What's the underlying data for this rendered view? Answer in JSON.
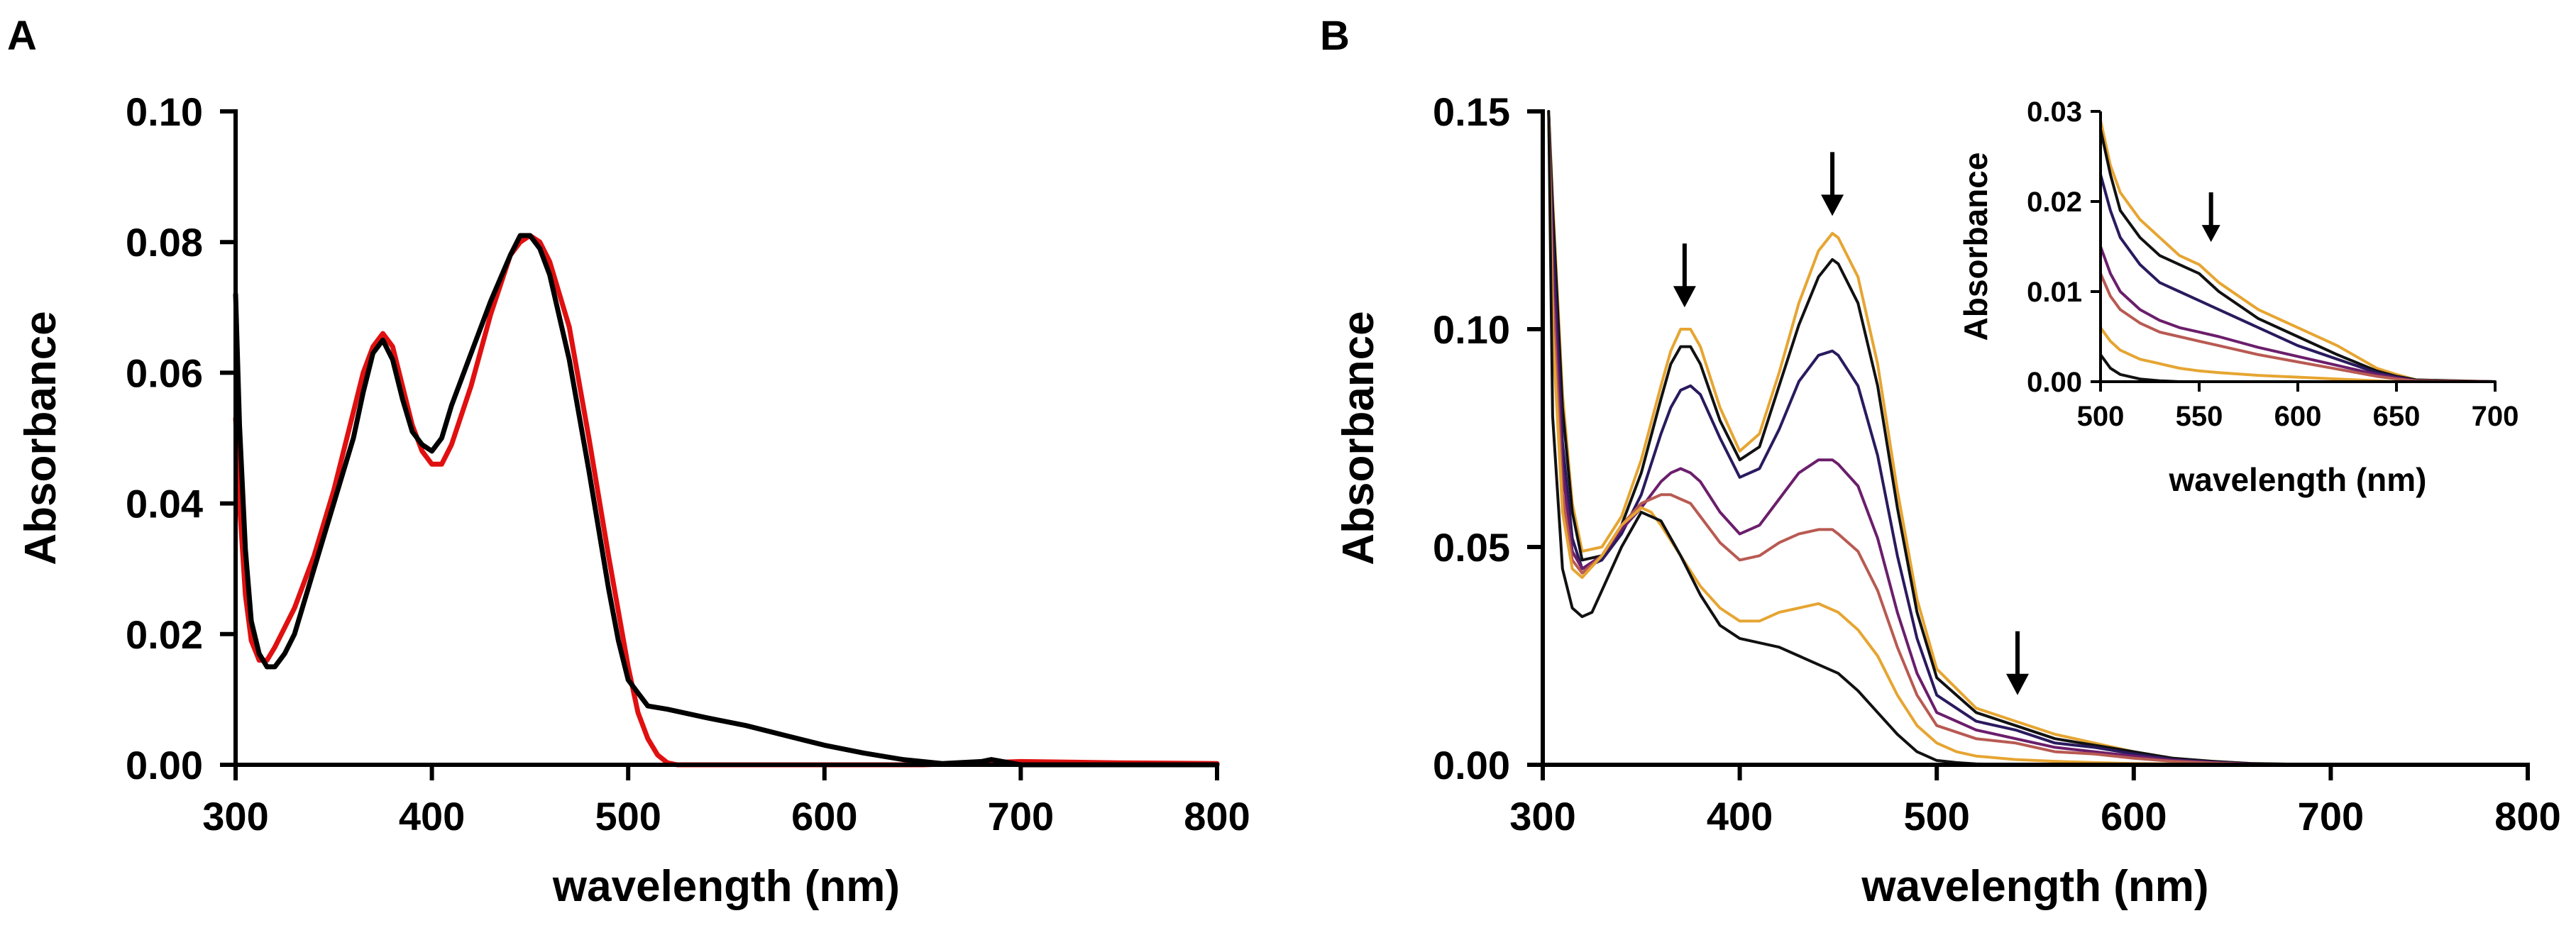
{
  "chart_data": [
    {
      "panel": "A",
      "type": "line",
      "title": "",
      "xlabel": "wavelength (nm)",
      "ylabel": "Absorbance",
      "xlim": [
        300,
        800
      ],
      "ylim": [
        0,
        0.1
      ],
      "xticks": [
        "300",
        "400",
        "500",
        "600",
        "700",
        "800"
      ],
      "yticks": [
        "0.00",
        "0.02",
        "0.04",
        "0.06",
        "0.08",
        "0.10"
      ],
      "legend": "none",
      "grid": false,
      "series": [
        {
          "color": "#e01010",
          "x": [
            300,
            302,
            305,
            308,
            312,
            316,
            320,
            330,
            340,
            350,
            360,
            365,
            370,
            375,
            380,
            385,
            390,
            395,
            400,
            405,
            410,
            420,
            430,
            440,
            445,
            450,
            455,
            460,
            470,
            480,
            490,
            500,
            505,
            510,
            515,
            520,
            525,
            550,
            600,
            650,
            700,
            750,
            800
          ],
          "y": [
            0.053,
            0.04,
            0.026,
            0.019,
            0.016,
            0.016,
            0.018,
            0.024,
            0.032,
            0.042,
            0.054,
            0.06,
            0.064,
            0.066,
            0.064,
            0.058,
            0.052,
            0.048,
            0.046,
            0.046,
            0.049,
            0.058,
            0.069,
            0.078,
            0.08,
            0.081,
            0.08,
            0.077,
            0.067,
            0.05,
            0.032,
            0.015,
            0.008,
            0.004,
            0.0015,
            0.0003,
            0.0,
            0.0,
            0.0,
            0.0,
            0.0005,
            0.0003,
            0.0002
          ]
        },
        {
          "color": "#000000",
          "x": [
            300,
            302,
            305,
            308,
            312,
            316,
            320,
            325,
            330,
            340,
            350,
            360,
            365,
            370,
            375,
            380,
            385,
            390,
            395,
            400,
            405,
            410,
            420,
            430,
            440,
            445,
            450,
            455,
            460,
            470,
            480,
            490,
            495,
            500,
            505,
            510,
            520,
            540,
            560,
            580,
            600,
            620,
            640,
            660,
            680,
            685,
            700,
            750,
            800
          ],
          "y": [
            0.072,
            0.052,
            0.033,
            0.022,
            0.017,
            0.015,
            0.015,
            0.017,
            0.02,
            0.03,
            0.04,
            0.05,
            0.057,
            0.063,
            0.065,
            0.062,
            0.056,
            0.051,
            0.049,
            0.048,
            0.05,
            0.055,
            0.063,
            0.071,
            0.078,
            0.081,
            0.081,
            0.079,
            0.075,
            0.062,
            0.045,
            0.027,
            0.019,
            0.013,
            0.011,
            0.009,
            0.0085,
            0.0072,
            0.006,
            0.0045,
            0.003,
            0.0018,
            0.0008,
            0.0002,
            0.0005,
            0.0008,
            0.0,
            0.0,
            0.0
          ]
        }
      ]
    },
    {
      "panel": "B",
      "type": "line",
      "title": "",
      "xlabel": "wavelength (nm)",
      "ylabel": "Absorbance",
      "xlim": [
        300,
        800
      ],
      "ylim": [
        0,
        0.15
      ],
      "xticks": [
        "300",
        "400",
        "500",
        "600",
        "700",
        "800"
      ],
      "yticks": [
        "0.00",
        "0.05",
        "0.10",
        "0.15"
      ],
      "legend": "none",
      "grid": false,
      "series": [
        {
          "color": "#e6a532",
          "x": [
            303,
            305,
            310,
            315,
            320,
            330,
            340,
            350,
            360,
            365,
            370,
            375,
            380,
            390,
            400,
            410,
            420,
            430,
            440,
            447,
            450,
            460,
            470,
            480,
            490,
            500,
            520,
            540,
            560,
            580,
            600,
            620,
            640,
            660,
            700,
            750,
            800
          ],
          "y": [
            0.15,
            0.13,
            0.085,
            0.06,
            0.049,
            0.05,
            0.057,
            0.07,
            0.087,
            0.095,
            0.1,
            0.1,
            0.096,
            0.082,
            0.072,
            0.076,
            0.09,
            0.106,
            0.118,
            0.122,
            0.121,
            0.112,
            0.092,
            0.063,
            0.038,
            0.022,
            0.013,
            0.01,
            0.007,
            0.005,
            0.003,
            0.0015,
            0.0008,
            0.0003,
            0.0,
            0.0,
            0.0
          ]
        },
        {
          "color": "#111111",
          "x": [
            303,
            305,
            310,
            315,
            320,
            330,
            340,
            350,
            360,
            365,
            370,
            375,
            380,
            390,
            400,
            410,
            420,
            430,
            440,
            447,
            450,
            460,
            470,
            480,
            490,
            500,
            520,
            540,
            560,
            580,
            600,
            620,
            640,
            660,
            700,
            750,
            800
          ],
          "y": [
            0.15,
            0.128,
            0.082,
            0.058,
            0.047,
            0.048,
            0.055,
            0.067,
            0.084,
            0.092,
            0.096,
            0.096,
            0.092,
            0.079,
            0.07,
            0.073,
            0.087,
            0.101,
            0.112,
            0.116,
            0.115,
            0.106,
            0.087,
            0.059,
            0.035,
            0.02,
            0.012,
            0.009,
            0.006,
            0.0045,
            0.003,
            0.0015,
            0.0008,
            0.0003,
            0.0,
            0.0,
            0.0
          ]
        },
        {
          "color": "#2a1a5e",
          "x": [
            303,
            305,
            310,
            315,
            320,
            330,
            340,
            350,
            360,
            365,
            370,
            375,
            380,
            390,
            400,
            410,
            420,
            430,
            440,
            447,
            450,
            460,
            470,
            480,
            490,
            500,
            520,
            540,
            560,
            580,
            600,
            620,
            640,
            660,
            700,
            750,
            800
          ],
          "y": [
            0.15,
            0.122,
            0.074,
            0.052,
            0.045,
            0.047,
            0.053,
            0.062,
            0.076,
            0.082,
            0.086,
            0.087,
            0.085,
            0.075,
            0.066,
            0.068,
            0.077,
            0.088,
            0.094,
            0.095,
            0.094,
            0.087,
            0.071,
            0.048,
            0.029,
            0.016,
            0.01,
            0.008,
            0.005,
            0.004,
            0.0025,
            0.0012,
            0.0006,
            0.0002,
            0.0,
            0.0,
            0.0
          ]
        },
        {
          "color": "#6b1e6b",
          "x": [
            303,
            305,
            310,
            315,
            320,
            330,
            340,
            350,
            360,
            365,
            370,
            375,
            380,
            390,
            400,
            410,
            420,
            430,
            440,
            447,
            450,
            460,
            470,
            480,
            490,
            500,
            520,
            540,
            560,
            580,
            600,
            620,
            640,
            660,
            700,
            750,
            800
          ],
          "y": [
            0.15,
            0.115,
            0.068,
            0.049,
            0.045,
            0.048,
            0.054,
            0.059,
            0.065,
            0.067,
            0.068,
            0.067,
            0.065,
            0.058,
            0.053,
            0.055,
            0.061,
            0.067,
            0.07,
            0.07,
            0.069,
            0.064,
            0.052,
            0.035,
            0.021,
            0.012,
            0.008,
            0.006,
            0.004,
            0.003,
            0.002,
            0.001,
            0.0005,
            0.0002,
            0.0,
            0.0,
            0.0
          ]
        },
        {
          "color": "#b85a52",
          "x": [
            303,
            305,
            310,
            315,
            320,
            330,
            340,
            350,
            360,
            365,
            370,
            375,
            380,
            390,
            400,
            410,
            420,
            430,
            440,
            447,
            450,
            460,
            470,
            480,
            490,
            500,
            520,
            540,
            560,
            580,
            600,
            620,
            640,
            660,
            700,
            750,
            800
          ],
          "y": [
            0.15,
            0.108,
            0.062,
            0.047,
            0.044,
            0.048,
            0.055,
            0.06,
            0.062,
            0.062,
            0.061,
            0.06,
            0.057,
            0.051,
            0.047,
            0.048,
            0.051,
            0.053,
            0.054,
            0.054,
            0.053,
            0.049,
            0.04,
            0.027,
            0.016,
            0.009,
            0.006,
            0.005,
            0.003,
            0.0025,
            0.0015,
            0.0008,
            0.0004,
            0.0001,
            0.0,
            0.0,
            0.0
          ]
        },
        {
          "color": "#e6a532",
          "x": [
            303,
            305,
            310,
            315,
            320,
            330,
            340,
            350,
            355,
            360,
            370,
            380,
            390,
            400,
            410,
            420,
            430,
            440,
            445,
            450,
            460,
            470,
            480,
            490,
            500,
            510,
            520,
            540,
            560,
            580,
            600,
            620,
            640,
            660,
            700,
            750,
            800
          ],
          "y": [
            0.15,
            0.1,
            0.058,
            0.045,
            0.043,
            0.048,
            0.055,
            0.059,
            0.058,
            0.055,
            0.048,
            0.041,
            0.036,
            0.033,
            0.033,
            0.035,
            0.036,
            0.037,
            0.036,
            0.035,
            0.031,
            0.025,
            0.016,
            0.009,
            0.005,
            0.003,
            0.002,
            0.0012,
            0.0008,
            0.0005,
            0.0003,
            0.0002,
            0.0001,
            0.0,
            0.0,
            0.0,
            0.0
          ]
        },
        {
          "color": "#111111",
          "x": [
            303,
            305,
            310,
            315,
            320,
            325,
            330,
            340,
            350,
            360,
            370,
            380,
            390,
            400,
            410,
            420,
            430,
            440,
            450,
            460,
            470,
            480,
            490,
            500,
            510,
            520,
            540,
            560,
            600,
            650,
            700,
            800
          ],
          "y": [
            0.15,
            0.08,
            0.045,
            0.036,
            0.034,
            0.035,
            0.04,
            0.05,
            0.058,
            0.056,
            0.048,
            0.039,
            0.032,
            0.029,
            0.028,
            0.027,
            0.025,
            0.023,
            0.021,
            0.017,
            0.012,
            0.007,
            0.003,
            0.001,
            0.0005,
            0.0002,
            0.0,
            0.0,
            0.0,
            0.0,
            0.0,
            0.0
          ]
        }
      ],
      "annotations": [
        {
          "type": "arrow-down",
          "x": 372,
          "y": 0.105
        },
        {
          "type": "arrow-down",
          "x": 447,
          "y": 0.126
        },
        {
          "type": "arrow-down",
          "x": 541,
          "y": 0.016
        }
      ]
    },
    {
      "panel": "B-inset",
      "type": "line",
      "title": "",
      "xlabel": "wavelength (nm)",
      "ylabel": "Absorbance",
      "xlim": [
        500,
        700
      ],
      "ylim": [
        0,
        0.03
      ],
      "xticks": [
        "500",
        "550",
        "600",
        "650",
        "700"
      ],
      "yticks": [
        "0.00",
        "0.01",
        "0.02",
        "0.03"
      ],
      "legend": "none",
      "grid": false,
      "series": [
        {
          "color": "#e6a532",
          "x": [
            500,
            505,
            510,
            520,
            530,
            540,
            550,
            560,
            580,
            600,
            620,
            640,
            650,
            660,
            700
          ],
          "y": [
            0.029,
            0.024,
            0.021,
            0.018,
            0.016,
            0.014,
            0.013,
            0.011,
            0.008,
            0.006,
            0.004,
            0.0015,
            0.0008,
            0.0002,
            0.0
          ]
        },
        {
          "color": "#111111",
          "x": [
            500,
            505,
            510,
            520,
            530,
            540,
            550,
            560,
            580,
            600,
            620,
            640,
            650,
            660,
            700
          ],
          "y": [
            0.028,
            0.023,
            0.019,
            0.016,
            0.014,
            0.013,
            0.012,
            0.01,
            0.007,
            0.005,
            0.003,
            0.0012,
            0.0006,
            0.0002,
            0.0
          ]
        },
        {
          "color": "#2a1a5e",
          "x": [
            500,
            505,
            510,
            520,
            530,
            540,
            550,
            560,
            580,
            600,
            620,
            640,
            650,
            660,
            700
          ],
          "y": [
            0.023,
            0.019,
            0.016,
            0.013,
            0.011,
            0.01,
            0.009,
            0.008,
            0.006,
            0.004,
            0.0025,
            0.001,
            0.0005,
            0.0001,
            0.0
          ]
        },
        {
          "color": "#6b1e6b",
          "x": [
            500,
            505,
            510,
            520,
            530,
            540,
            550,
            560,
            580,
            600,
            620,
            640,
            650,
            660,
            700
          ],
          "y": [
            0.015,
            0.012,
            0.01,
            0.008,
            0.0068,
            0.006,
            0.0055,
            0.005,
            0.0038,
            0.0028,
            0.0018,
            0.0008,
            0.0004,
            0.0001,
            0.0
          ]
        },
        {
          "color": "#b85a52",
          "x": [
            500,
            505,
            510,
            520,
            530,
            540,
            550,
            560,
            580,
            600,
            620,
            640,
            650,
            660,
            700
          ],
          "y": [
            0.012,
            0.0095,
            0.008,
            0.0065,
            0.0055,
            0.005,
            0.0045,
            0.004,
            0.003,
            0.0022,
            0.0014,
            0.0006,
            0.0003,
            0.0001,
            0.0
          ]
        },
        {
          "color": "#e6a532",
          "x": [
            500,
            505,
            510,
            520,
            530,
            540,
            550,
            560,
            580,
            600,
            620,
            640,
            650,
            660,
            700
          ],
          "y": [
            0.006,
            0.0045,
            0.0035,
            0.0025,
            0.002,
            0.0015,
            0.0012,
            0.001,
            0.0007,
            0.0005,
            0.0003,
            0.0001,
            0.0,
            0.0,
            0.0
          ]
        },
        {
          "color": "#111111",
          "x": [
            500,
            505,
            510,
            520,
            530,
            540,
            560,
            600,
            650,
            700
          ],
          "y": [
            0.003,
            0.0015,
            0.0008,
            0.0003,
            0.0001,
            0.0,
            0.0,
            0.0,
            0.0,
            0.0
          ]
        }
      ],
      "annotations": [
        {
          "type": "arrow-down",
          "x": 556,
          "y": 0.0155
        }
      ]
    }
  ],
  "panel_labels": [
    "A",
    "B"
  ]
}
